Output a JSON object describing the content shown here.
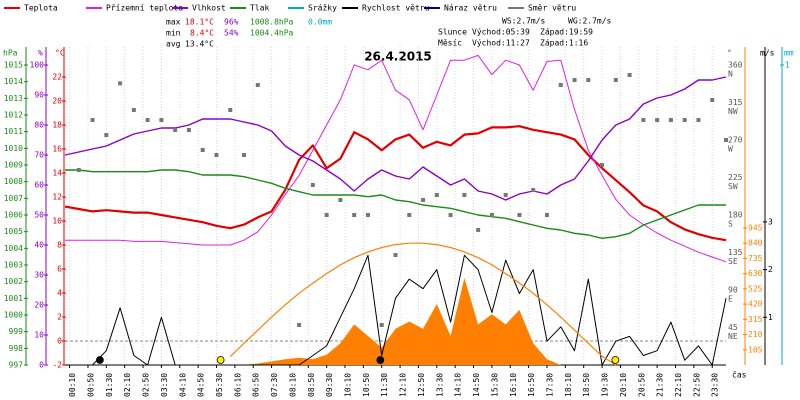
{
  "chart_data": {
    "type": "line",
    "title": "26.4.2015",
    "stats": {
      "rows": [
        {
          "label": "max",
          "temp": "18.1°C",
          "hum": "96%",
          "press": "1008.8hPa",
          "rain": "0.0mm"
        },
        {
          "label": "min",
          "temp": "8.4°C",
          "hum": "54%",
          "press": "1004.4hPa"
        },
        {
          "label": "avg",
          "temp": "13.4°C"
        }
      ],
      "wind": [
        "WS:2.7m/s",
        "WG:2.7m/s"
      ],
      "sun": {
        "label": "Slunce",
        "rise": "Východ:05:39",
        "set": "Západ:19:59"
      },
      "moon": {
        "label": "Měsíc",
        "rise": "Východ:11:27",
        "set": "Západ:1:16"
      }
    },
    "x_label": "čas",
    "xlim": [
      0,
      24
    ],
    "xticks": [
      {
        "value": 0.1667,
        "label": "00:10"
      },
      {
        "value": 0.8333,
        "label": "00:50"
      },
      {
        "value": 1.5,
        "label": "01:30"
      },
      {
        "value": 2.1667,
        "label": "02:10"
      },
      {
        "value": 2.8333,
        "label": "02:50"
      },
      {
        "value": 3.5,
        "label": "03:30"
      },
      {
        "value": 4.1667,
        "label": "04:10"
      },
      {
        "value": 4.8333,
        "label": "04:50"
      },
      {
        "value": 5.5,
        "label": "05:30"
      },
      {
        "value": 6.1667,
        "label": "06:10"
      },
      {
        "value": 6.8333,
        "label": "06:50"
      },
      {
        "value": 7.5,
        "label": "07:30"
      },
      {
        "value": 8.1667,
        "label": "08:10"
      },
      {
        "value": 8.8333,
        "label": "08:50"
      },
      {
        "value": 9.5,
        "label": "09:30"
      },
      {
        "value": 10.1667,
        "label": "10:10"
      },
      {
        "value": 10.8333,
        "label": "10:50"
      },
      {
        "value": 11.5,
        "label": "11:30"
      },
      {
        "value": 12.1667,
        "label": "12:10"
      },
      {
        "value": 12.8333,
        "label": "12:50"
      },
      {
        "value": 13.5,
        "label": "13:30"
      },
      {
        "value": 14.1667,
        "label": "14:10"
      },
      {
        "value": 14.8333,
        "label": "14:50"
      },
      {
        "value": 15.5,
        "label": "15:30"
      },
      {
        "value": 16.1667,
        "label": "16:10"
      },
      {
        "value": 16.8333,
        "label": "16:50"
      },
      {
        "value": 17.5,
        "label": "17:30"
      },
      {
        "value": 18.1667,
        "label": "18:10"
      },
      {
        "value": 18.8333,
        "label": "18:50"
      },
      {
        "value": 19.5,
        "label": "19:30"
      },
      {
        "value": 20.1667,
        "label": "20:10"
      },
      {
        "value": 20.8333,
        "label": "20:50"
      },
      {
        "value": 21.5,
        "label": "21:30"
      },
      {
        "value": 22.1667,
        "label": "22:10"
      },
      {
        "value": 22.8333,
        "label": "22:50"
      },
      {
        "value": 23.5,
        "label": "23:30"
      }
    ],
    "axes": [
      {
        "label": "hPa",
        "color": "#1a8a1a",
        "lim": [
          997,
          1016.08
        ],
        "ticks": [
          997,
          998,
          999,
          1000,
          1001,
          1002,
          1003,
          1004,
          1005,
          1006,
          1007,
          1008,
          1009,
          1010,
          1011,
          1012,
          1013,
          1014,
          1015
        ]
      },
      {
        "label": "%",
        "color": "#8a00c8",
        "lim": [
          0,
          106
        ],
        "ticks": [
          0,
          10,
          20,
          30,
          40,
          50,
          60,
          70,
          80,
          90,
          100
        ]
      },
      {
        "label": "°C",
        "color": "#e00000",
        "lim": [
          -2,
          24.5
        ],
        "ticks": [
          -2,
          0,
          2,
          4,
          6,
          8,
          10,
          12,
          14,
          16,
          18,
          20,
          22
        ]
      },
      {
        "label": "°",
        "color": "#555555",
        "lim": [
          0,
          381.6
        ],
        "ticks": [
          {
            "value": 45,
            "compass": "NE"
          },
          {
            "value": 90,
            "compass": "E"
          },
          {
            "value": 135,
            "compass": "SE"
          },
          {
            "value": 180,
            "compass": "S"
          },
          {
            "value": 225,
            "compass": "SW"
          },
          {
            "value": 270,
            "compass": "W"
          },
          {
            "value": 315,
            "compass": "NW"
          },
          {
            "value": 360,
            "compass": "N"
          }
        ]
      },
      {
        "color": "#ff8000",
        "lim": [
          0,
          2193
        ],
        "ticks": [
          105,
          210,
          315,
          420,
          525,
          630,
          735,
          840,
          945
        ]
      },
      {
        "label": "m/s",
        "color": "#000000",
        "lim": [
          0,
          6.667
        ],
        "ticks": [
          1,
          2,
          3
        ]
      },
      {
        "label": "mm",
        "color": "#00a8d0",
        "lim": [
          0,
          1.06
        ],
        "ticks": [
          1
        ]
      }
    ],
    "x": [
      0,
      0.5,
      1,
      1.5,
      2,
      2.5,
      3,
      3.5,
      4,
      4.5,
      5,
      5.5,
      6,
      6.5,
      7,
      7.5,
      8,
      8.5,
      9,
      9.5,
      10,
      10.5,
      11,
      11.5,
      12,
      12.5,
      13,
      13.5,
      14,
      14.5,
      15,
      15.5,
      16,
      16.5,
      17,
      17.5,
      18,
      18.5,
      19,
      19.5,
      20,
      20.5,
      21,
      21.5,
      22,
      22.5,
      23,
      23.5,
      24
    ],
    "series": [
      {
        "name": "Teplota",
        "color": "#e00000",
        "axis": 2,
        "width": 2.2,
        "values": [
          11.2,
          11.0,
          10.8,
          10.9,
          10.8,
          10.7,
          10.7,
          10.5,
          10.3,
          10.1,
          9.9,
          9.6,
          9.4,
          9.7,
          10.3,
          10.8,
          12.6,
          15.1,
          16.3,
          14.4,
          15.2,
          17.4,
          16.8,
          15.9,
          16.8,
          17.2,
          16.1,
          16.6,
          16.3,
          17.2,
          17.3,
          17.8,
          17.8,
          17.9,
          17.6,
          17.4,
          17.2,
          16.8,
          15.5,
          14.4,
          13.4,
          12.4,
          11.3,
          10.8,
          9.9,
          9.3,
          8.9,
          8.6,
          8.4
        ]
      },
      {
        "name": "Přízemní teplota",
        "color": "#e020e0",
        "axis": 2,
        "width": 1,
        "values": [
          8.4,
          8.4,
          8.4,
          8.4,
          8.4,
          8.3,
          8.3,
          8.3,
          8.2,
          8.1,
          8.0,
          8.0,
          8.0,
          8.4,
          9.1,
          10.5,
          12.2,
          13.8,
          15.9,
          18.0,
          20.1,
          23.0,
          22.6,
          23.4,
          20.9,
          20.1,
          17.6,
          20.5,
          23.4,
          23.4,
          23.8,
          22.2,
          23.4,
          23.0,
          20.9,
          23.3,
          23.4,
          19.3,
          15.9,
          13.8,
          11.8,
          10.5,
          9.7,
          9.0,
          8.4,
          7.9,
          7.4,
          7.0,
          6.6
        ]
      },
      {
        "name": "Vlhkost",
        "color": "#8a00c8",
        "axis": 1,
        "width": 1.4,
        "values": [
          70,
          71,
          72,
          73,
          75,
          77,
          78,
          79,
          79,
          80,
          82,
          82,
          82,
          81,
          80,
          78,
          73,
          70,
          68,
          65,
          62,
          58,
          62,
          65,
          63,
          62,
          66,
          63,
          60,
          62,
          58,
          57,
          55,
          57,
          58,
          57,
          60,
          62,
          68,
          75,
          80,
          82,
          87,
          89,
          90,
          92,
          95,
          95,
          96
        ]
      },
      {
        "name": "Tlak",
        "color": "#1a8a1a",
        "axis": 0,
        "width": 1.4,
        "values": [
          1008.7,
          1008.7,
          1008.6,
          1008.6,
          1008.6,
          1008.6,
          1008.6,
          1008.7,
          1008.7,
          1008.6,
          1008.4,
          1008.4,
          1008.4,
          1008.3,
          1008.1,
          1007.9,
          1007.6,
          1007.4,
          1007.2,
          1007.2,
          1007.2,
          1007.2,
          1007.1,
          1007.2,
          1006.9,
          1006.8,
          1006.6,
          1006.5,
          1006.4,
          1006.2,
          1006.0,
          1005.9,
          1005.8,
          1005.6,
          1005.4,
          1005.2,
          1005.1,
          1004.9,
          1004.8,
          1004.6,
          1004.7,
          1004.9,
          1005.4,
          1005.7,
          1006.0,
          1006.3,
          1006.6,
          1006.6,
          1006.6
        ]
      },
      {
        "name": "Srážky",
        "color": "#00a8d0",
        "axis": 6
      },
      {
        "name": "Rychlost větru",
        "color": "#000000",
        "axis": 5,
        "width": 1,
        "values": [
          0,
          0,
          0,
          0.3,
          1.2,
          0.2,
          0,
          1.0,
          0,
          0,
          0,
          0,
          0,
          0,
          0,
          0,
          0,
          0,
          0.2,
          0.4,
          1.0,
          1.6,
          2.3,
          0.2,
          1.4,
          1.8,
          1.6,
          2.0,
          0.9,
          2.3,
          2.0,
          1.1,
          2.2,
          1.5,
          2.0,
          0.5,
          0.8,
          0.3,
          1.8,
          0,
          0.5,
          0.6,
          0.2,
          0.3,
          0.9,
          0.1,
          0.4,
          0,
          1.4
        ]
      },
      {
        "name": "Náraz větru",
        "color": "#000080",
        "axis": 5
      },
      {
        "name": "Směr větru",
        "color": "#777777",
        "axis": 3,
        "kind": "points",
        "values": [
          null,
          234,
          294,
          276,
          338,
          306,
          294,
          294,
          282,
          282,
          258,
          252,
          306,
          252,
          336,
          null,
          null,
          48,
          216,
          180,
          198,
          180,
          180,
          48,
          132,
          180,
          198,
          204,
          180,
          204,
          162,
          180,
          204,
          180,
          210,
          180,
          336,
          342,
          342,
          240,
          342,
          348,
          294,
          294,
          294,
          294,
          294,
          318,
          270
        ]
      },
      {
        "color": "#ff8000",
        "axis": 4,
        "kind": "area",
        "values": [
          0,
          0,
          0,
          0,
          0,
          0,
          0,
          0,
          0,
          0,
          0,
          0,
          0,
          0,
          10,
          25,
          40,
          50,
          40,
          70,
          150,
          280,
          200,
          120,
          250,
          300,
          250,
          420,
          200,
          600,
          280,
          350,
          280,
          380,
          150,
          40,
          0,
          0,
          0,
          0,
          0,
          0,
          0,
          0,
          0,
          0,
          0,
          0,
          0
        ]
      },
      {
        "color": "#ff8000",
        "axis": 4,
        "width": 1.2,
        "values": [
          null,
          null,
          null,
          null,
          null,
          null,
          null,
          null,
          null,
          null,
          null,
          null,
          58,
          150,
          240,
          330,
          415,
          495,
          565,
          630,
          690,
          740,
          780,
          810,
          830,
          840,
          840,
          830,
          810,
          780,
          740,
          690,
          630,
          565,
          495,
          415,
          330,
          240,
          150,
          60,
          0,
          null,
          null,
          null,
          null,
          null,
          null,
          null,
          null
        ]
      }
    ]
  }
}
